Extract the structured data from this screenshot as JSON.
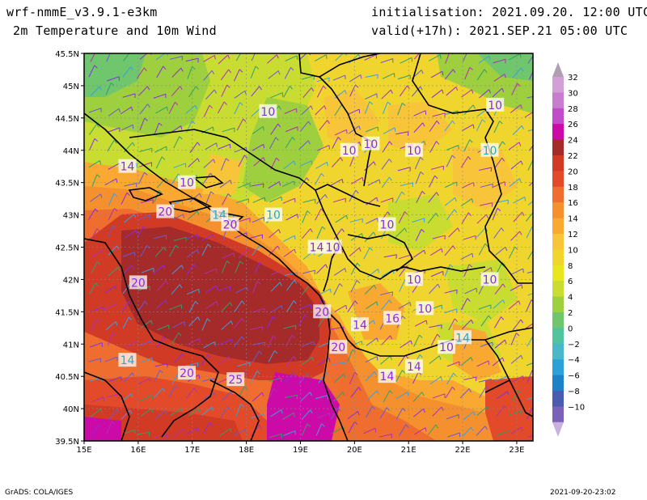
{
  "header": {
    "model": "wrf-nmmE_v3.9.1-e3km",
    "field": "2m Temperature and 10m Wind",
    "init": "initialisation: 2021.09.20. 12:00 UTC",
    "valid": "valid(+17h): 2021.SEP.21 05:00 UTC"
  },
  "footer": {
    "software": "GrADS: COLA/IGES",
    "timestamp": "2021-09-20-23:02"
  },
  "map": {
    "lon_range": [
      15,
      23.3
    ],
    "lat_range": [
      39.5,
      45.5
    ],
    "lon_ticks": [
      "15E",
      "16E",
      "17E",
      "18E",
      "19E",
      "20E",
      "21E",
      "22E",
      "23E"
    ],
    "lat_ticks": [
      "39.5N",
      "40N",
      "40.5N",
      "41N",
      "41.5N",
      "42N",
      "42.5N",
      "43N",
      "43.5N",
      "44N",
      "44.5N",
      "45N",
      "45.5N"
    ],
    "contour_labels": [
      {
        "text": "10",
        "lon": 18.4,
        "lat": 44.6,
        "color": "#8a2be2"
      },
      {
        "text": "10",
        "lon": 19.9,
        "lat": 44.0,
        "color": "#8a2be2"
      },
      {
        "text": "10",
        "lon": 20.3,
        "lat": 44.1,
        "color": "#8a2be2"
      },
      {
        "text": "10",
        "lon": 21.1,
        "lat": 44.0,
        "color": "#8a2be2"
      },
      {
        "text": "10",
        "lon": 22.6,
        "lat": 44.7,
        "color": "#8a2be2"
      },
      {
        "text": "10",
        "lon": 22.5,
        "lat": 44.0,
        "color": "#22aacc"
      },
      {
        "text": "14",
        "lon": 15.8,
        "lat": 43.75,
        "color": "#8a2be2"
      },
      {
        "text": "10",
        "lon": 16.9,
        "lat": 43.5,
        "color": "#8a2be2"
      },
      {
        "text": "20",
        "lon": 16.5,
        "lat": 43.05,
        "color": "#8a2be2"
      },
      {
        "text": "14",
        "lon": 17.5,
        "lat": 43.0,
        "color": "#22aacc"
      },
      {
        "text": "20",
        "lon": 17.7,
        "lat": 42.85,
        "color": "#8a2be2"
      },
      {
        "text": "10",
        "lon": 18.5,
        "lat": 43.0,
        "color": "#22aacc"
      },
      {
        "text": "14",
        "lon": 19.3,
        "lat": 42.5,
        "color": "#8a2be2"
      },
      {
        "text": "10",
        "lon": 19.6,
        "lat": 42.5,
        "color": "#8a2be2"
      },
      {
        "text": "10",
        "lon": 20.6,
        "lat": 42.85,
        "color": "#8a2be2"
      },
      {
        "text": "20",
        "lon": 16.0,
        "lat": 41.95,
        "color": "#8a2be2"
      },
      {
        "text": "10",
        "lon": 21.1,
        "lat": 42.0,
        "color": "#8a2be2"
      },
      {
        "text": "10",
        "lon": 22.5,
        "lat": 42.0,
        "color": "#8a2be2"
      },
      {
        "text": "20",
        "lon": 19.4,
        "lat": 41.5,
        "color": "#8a2be2"
      },
      {
        "text": "16",
        "lon": 20.7,
        "lat": 41.4,
        "color": "#8a2be2"
      },
      {
        "text": "10",
        "lon": 21.3,
        "lat": 41.55,
        "color": "#8a2be2"
      },
      {
        "text": "14",
        "lon": 20.1,
        "lat": 41.3,
        "color": "#8a2be2"
      },
      {
        "text": "20",
        "lon": 19.7,
        "lat": 40.95,
        "color": "#8a2be2"
      },
      {
        "text": "10",
        "lon": 21.7,
        "lat": 40.95,
        "color": "#8a2be2"
      },
      {
        "text": "14",
        "lon": 22.0,
        "lat": 41.1,
        "color": "#22aacc"
      },
      {
        "text": "14",
        "lon": 15.8,
        "lat": 40.75,
        "color": "#22aacc"
      },
      {
        "text": "20",
        "lon": 16.9,
        "lat": 40.55,
        "color": "#8a2be2"
      },
      {
        "text": "25",
        "lon": 17.8,
        "lat": 40.45,
        "color": "#8a2be2"
      },
      {
        "text": "14",
        "lon": 20.6,
        "lat": 40.5,
        "color": "#8a2be2"
      },
      {
        "text": "14",
        "lon": 21.1,
        "lat": 40.65,
        "color": "#8a2be2"
      }
    ]
  },
  "colorbar": {
    "labels": [
      "32",
      "30",
      "28",
      "26",
      "24",
      "22",
      "20",
      "18",
      "16",
      "14",
      "12",
      "10",
      "8",
      "6",
      "4",
      "2",
      "0",
      "−2",
      "−4",
      "−6",
      "−8",
      "−10"
    ],
    "colors": [
      "#d29fd6",
      "#c77dd0",
      "#c24bc9",
      "#cc0aa8",
      "#a52a2a",
      "#d13b26",
      "#e24a29",
      "#ef6d2e",
      "#f5902e",
      "#f9a832",
      "#f8c43a",
      "#f0d52f",
      "#e8e61f",
      "#c9dc31",
      "#9ecf3f",
      "#6fc66c",
      "#4fc49e",
      "#4ab8c8",
      "#2ca1d8",
      "#1c81c6",
      "#4a5cb0",
      "#7a62b8"
    ],
    "top_arrow_color": "#b09fb0",
    "bottom_arrow_color": "#c8b0e0"
  }
}
